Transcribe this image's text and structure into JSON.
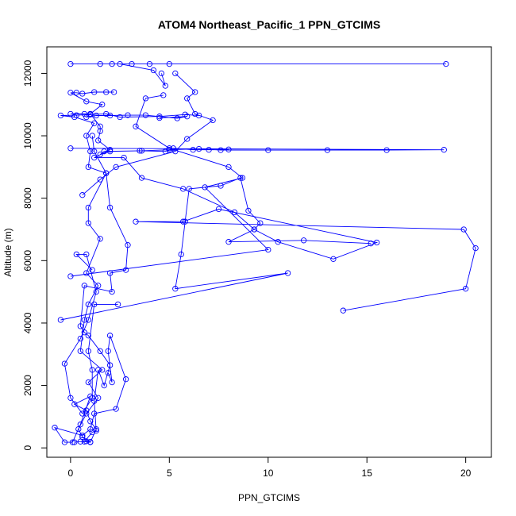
{
  "chart_data": {
    "type": "line",
    "title": "ATOM4 Northeast_Pacific_1 PPN_GTCIMS",
    "xlabel": "PPN_GTCIMS",
    "ylabel": "Altitude (m)",
    "xlim": [
      -1.2,
      21.3
    ],
    "ylim": [
      -300,
      12850
    ],
    "xticks": [
      0,
      5,
      10,
      15,
      20
    ],
    "yticks": [
      0,
      2000,
      4000,
      6000,
      8000,
      10000,
      12000
    ],
    "marker": "open-circle",
    "grid": false,
    "legend": "none",
    "color": "#0000ff",
    "series": [
      {
        "values": [
          [
            0.2,
            180
          ],
          [
            0.5,
            200
          ],
          [
            0.8,
            210
          ],
          [
            1.0,
            190
          ],
          [
            0.6,
            350
          ],
          [
            0.4,
            600
          ],
          [
            0.8,
            1100
          ],
          [
            1.4,
            1600
          ],
          [
            0.9,
            2100
          ],
          [
            1.6,
            2500
          ],
          [
            0.5,
            3100
          ],
          [
            0.7,
            4100
          ],
          [
            0.9,
            4600
          ],
          [
            1.4,
            5200
          ],
          [
            0.8,
            5600
          ],
          [
            1.5,
            6700
          ],
          [
            0.9,
            7200
          ],
          [
            0.9,
            7700
          ],
          [
            1.8,
            8800
          ],
          [
            0.9,
            9000
          ],
          [
            1.0,
            9500
          ],
          [
            0.8,
            10000
          ],
          [
            1.2,
            10400
          ],
          [
            0.2,
            10600
          ],
          [
            -0.5,
            10650
          ],
          [
            0.3,
            10660
          ],
          [
            1.0,
            10680
          ],
          [
            1.8,
            10700
          ],
          [
            2.5,
            10600
          ],
          [
            4.5,
            10620
          ],
          [
            5.8,
            10680
          ],
          [
            6.5,
            10650
          ]
        ]
      },
      {
        "values": [
          [
            0.0,
            10700
          ],
          [
            0.7,
            10700
          ],
          [
            1.0,
            10700
          ],
          [
            0.8,
            10600
          ],
          [
            1.3,
            10650
          ],
          [
            2.0,
            10650
          ],
          [
            2.9,
            10660
          ],
          [
            3.8,
            10660
          ],
          [
            5.4,
            10560
          ],
          [
            5.9,
            10620
          ],
          [
            4.5,
            10570
          ]
        ]
      },
      {
        "values": [
          [
            0.0,
            9600
          ],
          [
            18.9,
            9550
          ],
          [
            16.0,
            9540
          ],
          [
            13.0,
            9540
          ],
          [
            10.0,
            9540
          ],
          [
            7.6,
            9540
          ],
          [
            6.5,
            9580
          ],
          [
            5.0,
            9550
          ],
          [
            3.6,
            9520
          ],
          [
            2.0,
            9500
          ],
          [
            1.5,
            9400
          ],
          [
            1.7,
            9500
          ],
          [
            3.5,
            9520
          ],
          [
            4.8,
            9500
          ],
          [
            5.2,
            9600
          ],
          [
            6.2,
            9550
          ],
          [
            7.0,
            9550
          ],
          [
            8.0,
            9560
          ]
        ]
      },
      {
        "values": [
          [
            2.1,
            12300
          ],
          [
            1.5,
            12300
          ],
          [
            0.0,
            12300
          ],
          [
            19.0,
            12300
          ],
          [
            5.0,
            12300
          ],
          [
            4.0,
            12300
          ],
          [
            3.1,
            12300
          ],
          [
            2.5,
            12300
          ],
          [
            4.2,
            12100
          ],
          [
            4.8,
            11600
          ],
          [
            4.6,
            12000
          ]
        ]
      },
      {
        "values": [
          [
            2.2,
            11400
          ],
          [
            1.8,
            11400
          ],
          [
            1.2,
            11400
          ],
          [
            0.6,
            11350
          ],
          [
            0.3,
            11380
          ],
          [
            0.0,
            11380
          ],
          [
            0.8,
            11100
          ],
          [
            1.6,
            11000
          ],
          [
            1.0,
            10700
          ],
          [
            1.5,
            10300
          ],
          [
            1.5,
            10150
          ],
          [
            1.4,
            9850
          ],
          [
            2.0,
            9550
          ],
          [
            1.2,
            9300
          ],
          [
            2.7,
            9300
          ],
          [
            3.6,
            8650
          ],
          [
            5.7,
            8300
          ],
          [
            8.3,
            7550
          ],
          [
            9.3,
            7000
          ],
          [
            10.5,
            6600
          ],
          [
            13.3,
            6050
          ],
          [
            15.5,
            6580
          ],
          [
            7.5,
            7650
          ],
          [
            5.7,
            7250
          ],
          [
            3.3,
            7250
          ],
          [
            19.9,
            7000
          ],
          [
            20.5,
            6400
          ],
          [
            20.0,
            5100
          ],
          [
            13.8,
            4400
          ]
        ]
      },
      {
        "values": [
          [
            0.6,
            8100
          ],
          [
            1.5,
            8600
          ],
          [
            2.3,
            9000
          ],
          [
            5.3,
            9500
          ],
          [
            5.9,
            9900
          ],
          [
            7.2,
            10500
          ],
          [
            6.3,
            10700
          ],
          [
            5.9,
            11200
          ],
          [
            6.3,
            11400
          ],
          [
            5.3,
            12000
          ]
        ]
      },
      {
        "values": [
          [
            0.0,
            5500
          ],
          [
            10.0,
            6350
          ],
          [
            6.8,
            8350
          ],
          [
            8.7,
            8650
          ],
          [
            8.0,
            9000
          ],
          [
            5.0,
            9600
          ],
          [
            3.3,
            10300
          ],
          [
            3.8,
            11200
          ],
          [
            4.7,
            11300
          ]
        ]
      },
      {
        "values": [
          [
            2.4,
            4600
          ],
          [
            1.2,
            4600
          ],
          [
            0.9,
            3100
          ],
          [
            1.1,
            2500
          ],
          [
            1.1,
            1600
          ],
          [
            0.6,
            1100
          ],
          [
            0.0,
            1600
          ],
          [
            -0.3,
            2700
          ],
          [
            0.5,
            3500
          ],
          [
            0.9,
            4100
          ],
          [
            1.3,
            5000
          ],
          [
            0.8,
            6200
          ],
          [
            0.3,
            6200
          ],
          [
            1.1,
            5700
          ]
        ]
      },
      {
        "values": [
          [
            -0.5,
            4100
          ],
          [
            11.0,
            5600
          ],
          [
            5.3,
            5100
          ],
          [
            5.6,
            6200
          ],
          [
            5.8,
            7250
          ],
          [
            6.0,
            8300
          ],
          [
            7.6,
            8400
          ],
          [
            8.6,
            8650
          ],
          [
            9.0,
            7600
          ],
          [
            9.6,
            7200
          ],
          [
            9.3,
            7000
          ],
          [
            8.0,
            6600
          ],
          [
            11.8,
            6650
          ],
          [
            15.2,
            6550
          ]
        ]
      },
      {
        "values": [
          [
            1.9,
            2400
          ],
          [
            2.1,
            2100
          ],
          [
            1.9,
            3100
          ],
          [
            2.0,
            3600
          ],
          [
            2.8,
            2200
          ],
          [
            2.3,
            1250
          ],
          [
            1.2,
            1100
          ],
          [
            1.0,
            600
          ],
          [
            0.6,
            400
          ],
          [
            -0.8,
            650
          ],
          [
            -0.3,
            180
          ],
          [
            0.1,
            180
          ],
          [
            0.5,
            750
          ],
          [
            1.0,
            1650
          ],
          [
            0.2,
            1400
          ],
          [
            0.8,
            1200
          ],
          [
            1.0,
            850
          ],
          [
            1.3,
            600
          ],
          [
            1.0,
            180
          ],
          [
            0.7,
            200
          ],
          [
            1.1,
            500
          ],
          [
            1.3,
            550
          ],
          [
            1.2,
            1500
          ],
          [
            1.4,
            2500
          ],
          [
            1.7,
            2000
          ],
          [
            2.0,
            2650
          ],
          [
            1.5,
            3100
          ],
          [
            0.9,
            3600
          ],
          [
            0.7,
            3700
          ],
          [
            0.5,
            3900
          ],
          [
            0.7,
            5200
          ],
          [
            2.1,
            5000
          ],
          [
            2.0,
            5600
          ],
          [
            2.8,
            5700
          ],
          [
            2.9,
            6500
          ],
          [
            2.0,
            7700
          ],
          [
            1.8,
            8800
          ],
          [
            1.2,
            9500
          ],
          [
            1.1,
            10000
          ]
        ]
      }
    ]
  }
}
